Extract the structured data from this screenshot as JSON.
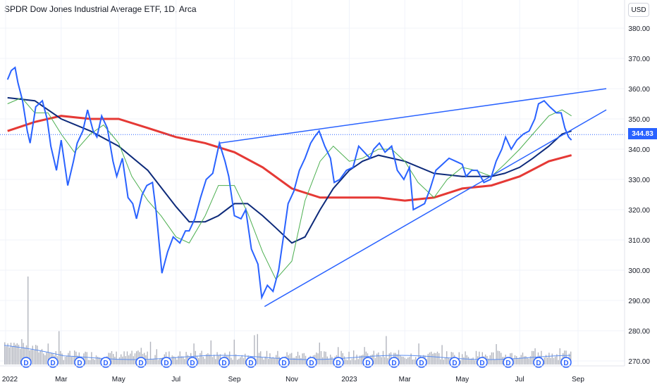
{
  "header": {
    "title": "SPDR Dow Jones Industrial Average ETF, 1D, Arca",
    "currency": "USD"
  },
  "last_price_label": "344.83",
  "dividend_marker_label": "D",
  "colors": {
    "price": "#2962ff",
    "ma_short": "#4caf50",
    "ma_mid": "#0d2a7a",
    "ma_long": "#e53935",
    "trendline": "#2962ff",
    "volume": "#b2b5be",
    "volume_ma": "#5b8def",
    "dividend": "#2962ff"
  },
  "chart_data": {
    "type": "line",
    "title": "SPDR Dow Jones Industrial Average ETF, 1D, Arca",
    "ylim": [
      265,
      385
    ],
    "yticks": [
      "380.00",
      "370.00",
      "360.00",
      "350.00",
      "340.00",
      "330.00",
      "320.00",
      "310.00",
      "300.00",
      "290.00",
      "280.00",
      "270.00"
    ],
    "xticks": [
      "2022",
      "Mar",
      "May",
      "Jul",
      "Sep",
      "Nov",
      "2023",
      "Mar",
      "May",
      "Jul",
      "Sep"
    ],
    "last_value": 344.83,
    "series": [
      {
        "key": "price",
        "points": [
          [
            "2022-01-03",
            363
          ],
          [
            "2022-01-07",
            366
          ],
          [
            "2022-01-11",
            367
          ],
          [
            "2022-01-14",
            362
          ],
          [
            "2022-01-19",
            356
          ],
          [
            "2022-01-24",
            346
          ],
          [
            "2022-01-27",
            342
          ],
          [
            "2022-02-02",
            354
          ],
          [
            "2022-02-09",
            356
          ],
          [
            "2022-02-14",
            350
          ],
          [
            "2022-02-18",
            341
          ],
          [
            "2022-02-24",
            333
          ],
          [
            "2022-03-01",
            343
          ],
          [
            "2022-03-08",
            328
          ],
          [
            "2022-03-14",
            336
          ],
          [
            "2022-03-18",
            342
          ],
          [
            "2022-03-24",
            346
          ],
          [
            "2022-03-29",
            353
          ],
          [
            "2022-04-04",
            346
          ],
          [
            "2022-04-08",
            344
          ],
          [
            "2022-04-13",
            351
          ],
          [
            "2022-04-19",
            347
          ],
          [
            "2022-04-25",
            336
          ],
          [
            "2022-04-29",
            331
          ],
          [
            "2022-05-05",
            337
          ],
          [
            "2022-05-11",
            324
          ],
          [
            "2022-05-16",
            322
          ],
          [
            "2022-05-20",
            317
          ],
          [
            "2022-05-26",
            325
          ],
          [
            "2022-05-31",
            328
          ],
          [
            "2022-06-06",
            329
          ],
          [
            "2022-06-10",
            319
          ],
          [
            "2022-06-16",
            299
          ],
          [
            "2022-06-22",
            306
          ],
          [
            "2022-06-28",
            311
          ],
          [
            "2022-07-05",
            309
          ],
          [
            "2022-07-11",
            313
          ],
          [
            "2022-07-15",
            313
          ],
          [
            "2022-07-21",
            317
          ],
          [
            "2022-07-27",
            324
          ],
          [
            "2022-08-02",
            330
          ],
          [
            "2022-08-09",
            332
          ],
          [
            "2022-08-16",
            342
          ],
          [
            "2022-08-22",
            336
          ],
          [
            "2022-08-26",
            331
          ],
          [
            "2022-09-01",
            318
          ],
          [
            "2022-09-08",
            317
          ],
          [
            "2022-09-13",
            320
          ],
          [
            "2022-09-19",
            307
          ],
          [
            "2022-09-26",
            302
          ],
          [
            "2022-09-30",
            291
          ],
          [
            "2022-10-06",
            295
          ],
          [
            "2022-10-12",
            293
          ],
          [
            "2022-10-18",
            300
          ],
          [
            "2022-10-24",
            313
          ],
          [
            "2022-10-28",
            322
          ],
          [
            "2022-11-03",
            326
          ],
          [
            "2022-11-09",
            333
          ],
          [
            "2022-11-15",
            337
          ],
          [
            "2022-11-21",
            342
          ],
          [
            "2022-11-25",
            344
          ],
          [
            "2022-11-30",
            346
          ],
          [
            "2022-12-06",
            341
          ],
          [
            "2022-12-12",
            337
          ],
          [
            "2022-12-16",
            329
          ],
          [
            "2022-12-22",
            330
          ],
          [
            "2022-12-29",
            333
          ],
          [
            "2023-01-05",
            334
          ],
          [
            "2023-01-11",
            341
          ],
          [
            "2023-01-17",
            339
          ],
          [
            "2023-01-23",
            337
          ],
          [
            "2023-01-27",
            340
          ],
          [
            "2023-02-02",
            342
          ],
          [
            "2023-02-08",
            339
          ],
          [
            "2023-02-15",
            341
          ],
          [
            "2023-02-21",
            333
          ],
          [
            "2023-02-28",
            330
          ],
          [
            "2023-03-06",
            334
          ],
          [
            "2023-03-10",
            320
          ],
          [
            "2023-03-16",
            321
          ],
          [
            "2023-03-22",
            322
          ],
          [
            "2023-03-28",
            327
          ],
          [
            "2023-04-03",
            333
          ],
          [
            "2023-04-10",
            335
          ],
          [
            "2023-04-17",
            337
          ],
          [
            "2023-04-24",
            336
          ],
          [
            "2023-05-01",
            335
          ],
          [
            "2023-05-05",
            331
          ],
          [
            "2023-05-11",
            333
          ],
          [
            "2023-05-17",
            333
          ],
          [
            "2023-05-24",
            329
          ],
          [
            "2023-05-31",
            330
          ],
          [
            "2023-06-06",
            336
          ],
          [
            "2023-06-12",
            340
          ],
          [
            "2023-06-16",
            344
          ],
          [
            "2023-06-22",
            340
          ],
          [
            "2023-06-28",
            343
          ],
          [
            "2023-07-05",
            345
          ],
          [
            "2023-07-11",
            346
          ],
          [
            "2023-07-17",
            350
          ],
          [
            "2023-07-21",
            355
          ],
          [
            "2023-07-27",
            356
          ],
          [
            "2023-08-02",
            354
          ],
          [
            "2023-08-09",
            352
          ],
          [
            "2023-08-14",
            352
          ],
          [
            "2023-08-18",
            347
          ],
          [
            "2023-08-22",
            344
          ],
          [
            "2023-08-25",
            343
          ]
        ]
      },
      {
        "key": "ma_short",
        "points": [
          [
            "2022-01-03",
            355
          ],
          [
            "2022-01-18",
            357
          ],
          [
            "2022-02-01",
            352
          ],
          [
            "2022-02-15",
            352
          ],
          [
            "2022-03-01",
            345
          ],
          [
            "2022-03-15",
            339
          ],
          [
            "2022-04-01",
            345
          ],
          [
            "2022-04-15",
            348
          ],
          [
            "2022-05-01",
            342
          ],
          [
            "2022-05-15",
            331
          ],
          [
            "2022-06-01",
            323
          ],
          [
            "2022-06-15",
            318
          ],
          [
            "2022-07-01",
            311
          ],
          [
            "2022-07-15",
            309
          ],
          [
            "2022-08-01",
            318
          ],
          [
            "2022-08-15",
            328
          ],
          [
            "2022-09-01",
            328
          ],
          [
            "2022-09-15",
            319
          ],
          [
            "2022-10-01",
            306
          ],
          [
            "2022-10-15",
            297
          ],
          [
            "2022-11-01",
            303
          ],
          [
            "2022-11-15",
            323
          ],
          [
            "2022-12-01",
            336
          ],
          [
            "2022-12-15",
            341
          ],
          [
            "2023-01-01",
            336
          ],
          [
            "2023-01-15",
            337
          ],
          [
            "2023-02-01",
            340
          ],
          [
            "2023-02-15",
            340
          ],
          [
            "2023-03-01",
            336
          ],
          [
            "2023-03-15",
            329
          ],
          [
            "2023-04-01",
            324
          ],
          [
            "2023-04-15",
            330
          ],
          [
            "2023-05-01",
            334
          ],
          [
            "2023-05-15",
            333
          ],
          [
            "2023-06-01",
            331
          ],
          [
            "2023-06-15",
            335
          ],
          [
            "2023-07-01",
            340
          ],
          [
            "2023-07-15",
            345
          ],
          [
            "2023-08-01",
            351
          ],
          [
            "2023-08-15",
            353
          ],
          [
            "2023-08-25",
            351
          ]
        ]
      },
      {
        "key": "ma_mid",
        "points": [
          [
            "2022-01-03",
            357
          ],
          [
            "2022-02-01",
            356
          ],
          [
            "2022-03-01",
            350
          ],
          [
            "2022-04-01",
            346
          ],
          [
            "2022-05-01",
            341
          ],
          [
            "2022-06-01",
            333
          ],
          [
            "2022-07-01",
            321
          ],
          [
            "2022-07-15",
            316
          ],
          [
            "2022-08-01",
            316
          ],
          [
            "2022-08-15",
            318
          ],
          [
            "2022-09-01",
            322
          ],
          [
            "2022-09-15",
            322
          ],
          [
            "2022-10-01",
            318
          ],
          [
            "2022-10-15",
            314
          ],
          [
            "2022-11-01",
            309
          ],
          [
            "2022-11-15",
            311
          ],
          [
            "2022-12-01",
            320
          ],
          [
            "2022-12-15",
            327
          ],
          [
            "2023-01-01",
            333
          ],
          [
            "2023-01-15",
            336
          ],
          [
            "2023-02-01",
            338
          ],
          [
            "2023-02-15",
            337
          ],
          [
            "2023-03-01",
            336
          ],
          [
            "2023-04-01",
            332
          ],
          [
            "2023-05-01",
            331
          ],
          [
            "2023-06-01",
            331
          ],
          [
            "2023-06-15",
            332
          ],
          [
            "2023-07-01",
            334
          ],
          [
            "2023-07-15",
            337
          ],
          [
            "2023-08-01",
            341
          ],
          [
            "2023-08-15",
            345
          ],
          [
            "2023-08-25",
            346
          ]
        ]
      },
      {
        "key": "ma_long",
        "points": [
          [
            "2022-01-03",
            346
          ],
          [
            "2022-02-01",
            349
          ],
          [
            "2022-03-01",
            351
          ],
          [
            "2022-04-01",
            350
          ],
          [
            "2022-05-01",
            350
          ],
          [
            "2022-06-01",
            347
          ],
          [
            "2022-07-01",
            344
          ],
          [
            "2022-08-01",
            342
          ],
          [
            "2022-09-01",
            339
          ],
          [
            "2022-10-01",
            334
          ],
          [
            "2022-11-01",
            327
          ],
          [
            "2022-12-01",
            324
          ],
          [
            "2023-01-01",
            324
          ],
          [
            "2023-02-01",
            324
          ],
          [
            "2023-03-01",
            323
          ],
          [
            "2023-04-01",
            324
          ],
          [
            "2023-05-01",
            327
          ],
          [
            "2023-06-01",
            328
          ],
          [
            "2023-07-01",
            331
          ],
          [
            "2023-08-01",
            336
          ],
          [
            "2023-08-25",
            338
          ]
        ]
      }
    ],
    "trendlines": [
      {
        "start": [
          "2022-08-16",
          342
        ],
        "end": [
          "2023-10-01",
          360
        ]
      },
      {
        "start": [
          "2022-10-03",
          288
        ],
        "end": [
          "2023-10-01",
          353
        ]
      }
    ]
  }
}
